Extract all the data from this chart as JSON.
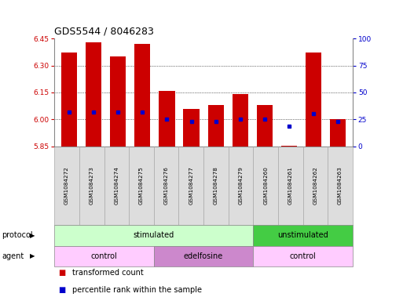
{
  "title": "GDS5544 / 8046283",
  "samples": [
    "GSM1084272",
    "GSM1084273",
    "GSM1084274",
    "GSM1084275",
    "GSM1084276",
    "GSM1084277",
    "GSM1084278",
    "GSM1084279",
    "GSM1084260",
    "GSM1084261",
    "GSM1084262",
    "GSM1084263"
  ],
  "bar_bottom": 5.85,
  "bar_tops": [
    6.37,
    6.43,
    6.35,
    6.42,
    6.16,
    6.06,
    6.08,
    6.14,
    6.08,
    5.852,
    6.37,
    6.0
  ],
  "percentile_values": [
    6.04,
    6.04,
    6.04,
    6.04,
    6.0,
    5.99,
    5.99,
    6.0,
    6.0,
    5.96,
    6.03,
    5.99
  ],
  "ylim_left": [
    5.85,
    6.45
  ],
  "ylim_right": [
    0,
    100
  ],
  "yticks_left": [
    5.85,
    6.0,
    6.15,
    6.3,
    6.45
  ],
  "yticks_right": [
    0,
    25,
    50,
    75,
    100
  ],
  "bar_color": "#cc0000",
  "percentile_color": "#0000cc",
  "protocol_groups": [
    {
      "label": "stimulated",
      "start": 0,
      "end": 8,
      "color": "#ccffcc"
    },
    {
      "label": "unstimulated",
      "start": 8,
      "end": 12,
      "color": "#44cc44"
    }
  ],
  "agent_groups": [
    {
      "label": "control",
      "start": 0,
      "end": 4,
      "color": "#ffccff"
    },
    {
      "label": "edelfosine",
      "start": 4,
      "end": 8,
      "color": "#cc88cc"
    },
    {
      "label": "control",
      "start": 8,
      "end": 12,
      "color": "#ffccff"
    }
  ],
  "legend_items": [
    {
      "label": "transformed count",
      "color": "#cc0000"
    },
    {
      "label": "percentile rank within the sample",
      "color": "#0000cc"
    }
  ],
  "protocol_label": "protocol",
  "agent_label": "agent",
  "sample_box_color": "#dddddd",
  "sample_box_edge": "#aaaaaa"
}
